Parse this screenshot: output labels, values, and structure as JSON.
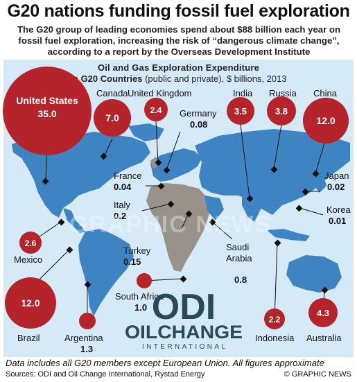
{
  "headline": "G20 nations funding fossil fuel exploration",
  "intro": "The G20 group of leading economies spend about $88 billion each year on fossil fuel exploration, increasing the risk of “dangerous climate change”, according to a report by the Overseas Development Institute",
  "panel": {
    "title": "Oil and Gas Exploration Expenditure",
    "subtitle_bold": "in G20 Countries",
    "subtitle_rest": "(public and private), $ billions, 2013"
  },
  "countries": [
    {
      "key": "us",
      "name": "United States",
      "value": "35.0"
    },
    {
      "key": "canada",
      "name": "Canada",
      "value": "7.0"
    },
    {
      "key": "uk",
      "name": "United Kingdom",
      "value": "2.4"
    },
    {
      "key": "germany",
      "name": "Germany",
      "value": "0.08"
    },
    {
      "key": "india",
      "name": "India",
      "value": "3.5"
    },
    {
      "key": "russia",
      "name": "Russia",
      "value": "3.8"
    },
    {
      "key": "china",
      "name": "China",
      "value": "12.0"
    },
    {
      "key": "france",
      "name": "France",
      "value": "0.04"
    },
    {
      "key": "italy",
      "name": "Italy",
      "value": "0.2"
    },
    {
      "key": "japan",
      "name": "Japan",
      "value": "0.02"
    },
    {
      "key": "korea",
      "name": "Korea",
      "value": "0.01"
    },
    {
      "key": "mexico",
      "name": "Mexico",
      "value": "2.6"
    },
    {
      "key": "turkey",
      "name": "Turkey",
      "value": "0.15"
    },
    {
      "key": "saudi",
      "name": "Saudi Arabia",
      "value": "0.8"
    },
    {
      "key": "brazil",
      "name": "Brazil",
      "value": "12.0"
    },
    {
      "key": "southafrica",
      "name": "South Africa",
      "value": "1.0"
    },
    {
      "key": "argentina",
      "name": "Argentina",
      "value": "1.3"
    },
    {
      "key": "indonesia",
      "name": "Indonesia",
      "value": "2.2"
    },
    {
      "key": "australia",
      "name": "Australia",
      "value": "4.3"
    }
  ],
  "logos": {
    "odi": "ODI",
    "oilchange": "OILCHANGE",
    "oilchange_sub": "INTERNATIONAL"
  },
  "watermark": "GRAPHIC NEWS",
  "footnote": "Data includes all G20 members except European Union. All figures approximate",
  "sources": "Sources: ODI and Oil Change International, Rystad Energy",
  "credit": "© GRAPHIC NEWS",
  "colors": {
    "bubble": "#b5242a",
    "land": "#3f84c2",
    "land_highlight": "#98928a",
    "ocean": "#d6e9f6",
    "logo_dark": "#2b4a57"
  }
}
